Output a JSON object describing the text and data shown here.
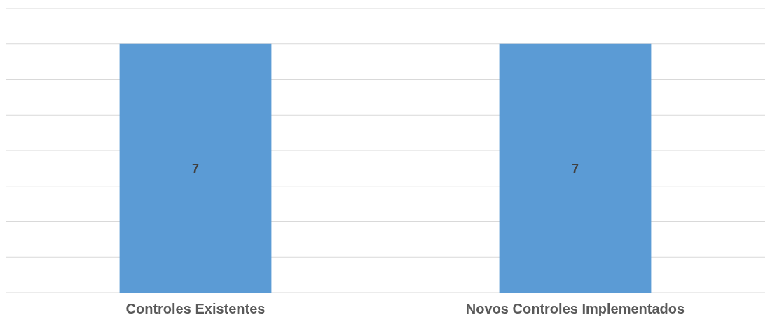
{
  "chart_data": {
    "type": "bar",
    "categories": [
      "Controles Existentes",
      "Novos Controles Implementados"
    ],
    "values": [
      7,
      7
    ],
    "color": "#5b9bd5",
    "ylim": [
      0,
      8
    ],
    "yticks": [
      {
        "value": 0,
        "label": null
      },
      {
        "value": 1,
        "label": null
      },
      {
        "value": 2,
        "label": null
      },
      {
        "value": 3,
        "label": null
      },
      {
        "value": 4,
        "label": null
      },
      {
        "value": 5,
        "label": null
      },
      {
        "value": 6,
        "label": null
      },
      {
        "value": 7,
        "label": null
      },
      {
        "value": 8,
        "label": null
      }
    ],
    "grid": "y",
    "tick_labels": "x",
    "data_labels": true
  }
}
